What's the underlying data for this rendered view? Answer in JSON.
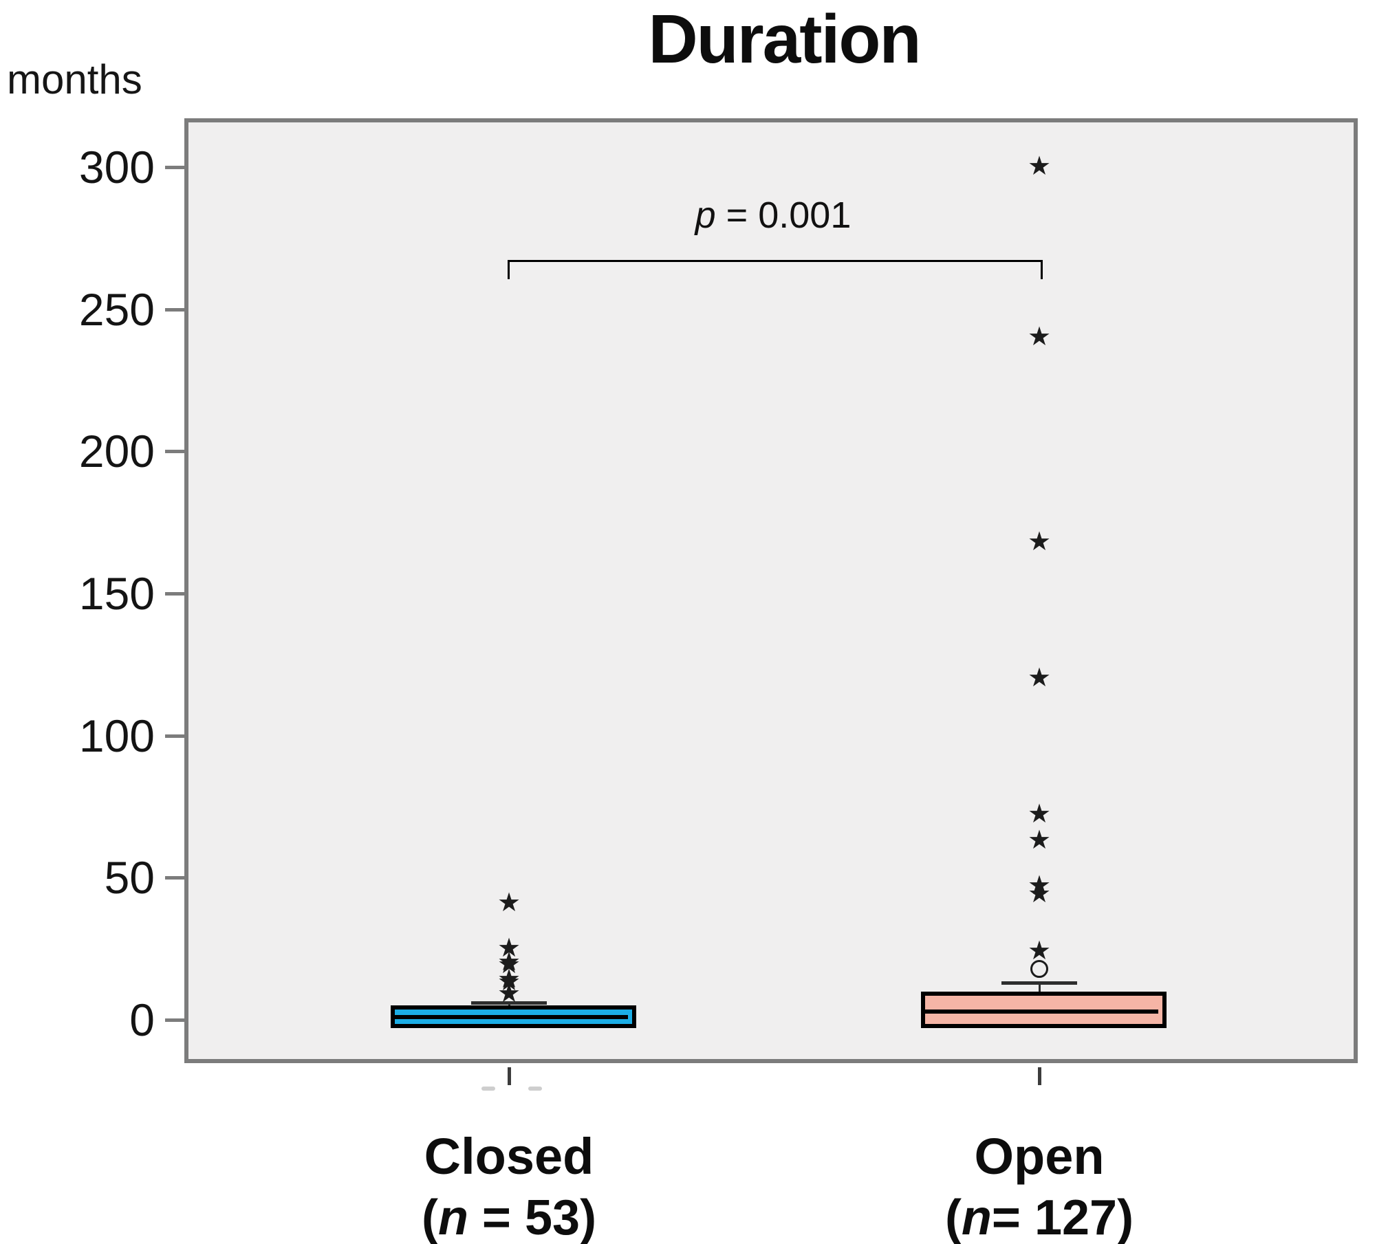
{
  "figure": {
    "title": "Duration",
    "y_unit": "months",
    "p_annotation": {
      "p": "p",
      "rest": " = 0.001"
    }
  },
  "chart_data": {
    "type": "boxplot",
    "title": "Duration",
    "ylabel": "months",
    "y_ticks": [
      300,
      250,
      200,
      150,
      100,
      50,
      0
    ],
    "ylim": [
      -16,
      317
    ],
    "grid": false,
    "significance": {
      "label": "p = 0.001",
      "between": [
        "Closed",
        "Open"
      ]
    },
    "groups": [
      {
        "name": "Closed",
        "n": 53,
        "label_line1": "Closed",
        "label_line2": "(n = 53)",
        "label_parts": {
          "open": "(",
          "n": "n",
          "rest": " = 53)"
        },
        "box_color": "#1caee6",
        "box": {
          "q1": 0,
          "median": 1,
          "q3": 5,
          "whisker_high": 6
        },
        "outliers_star": [
          41,
          25,
          20,
          19,
          14,
          13,
          9
        ],
        "outliers_circle": []
      },
      {
        "name": "Open",
        "n": 127,
        "label_line1": "Open",
        "label_line2": "(n= 127)",
        "label_parts": {
          "open": "(",
          "n": "n",
          "rest": "= 127)"
        },
        "box_color": "#f5b5a6",
        "box": {
          "q1": 0,
          "median": 3,
          "q3": 10,
          "whisker_high": 13
        },
        "outliers_star": [
          300,
          240,
          168,
          120,
          72,
          63,
          47,
          44,
          24
        ],
        "outliers_circle": [
          18
        ]
      }
    ]
  }
}
